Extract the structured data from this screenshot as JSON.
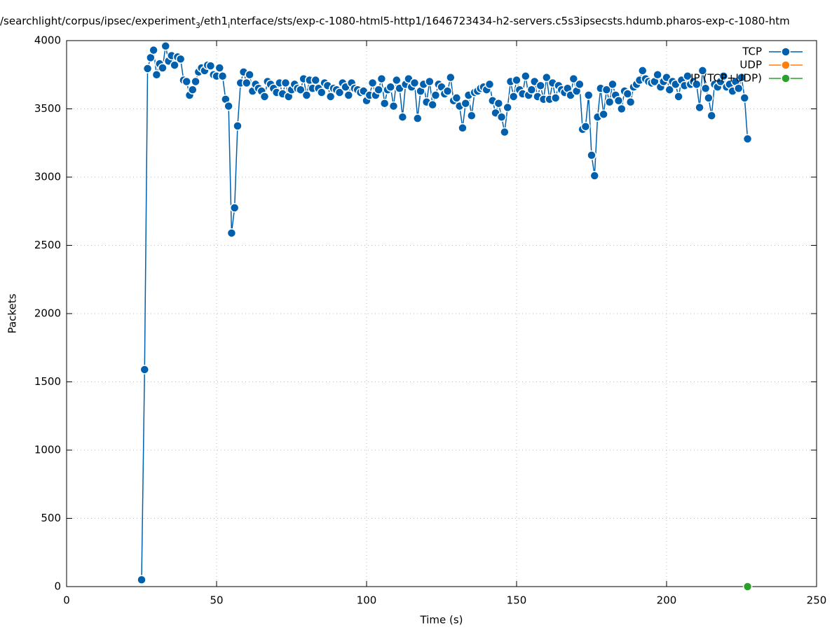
{
  "chart_data": {
    "type": "line",
    "title": [
      "/searchlight/corpus/ipsec/experiment",
      "3",
      "/eth1",
      "i",
      "nterface/sts/exp-c-1080-html5-http1/1646723434-h2-servers.c5s3ipsecsts.hdumb.pharos-exp-c-1080-htm"
    ],
    "xlabel": "Time (s)",
    "ylabel": "Packets",
    "xlim": [
      0,
      250
    ],
    "xticks": [
      0,
      50,
      100,
      150,
      200,
      250
    ],
    "ylim": [
      0,
      4000
    ],
    "yticks": [
      0,
      500,
      1000,
      1500,
      2000,
      2500,
      3000,
      3500,
      4000
    ],
    "grid": true,
    "legend": "top-right",
    "series": [
      {
        "name": "TCP",
        "color": "#0060ad",
        "x": [
          25,
          26,
          27,
          28,
          29,
          30,
          31,
          32,
          33,
          34,
          35,
          36,
          37,
          38,
          39,
          40,
          41,
          42,
          43,
          44,
          45,
          46,
          47,
          48,
          49,
          50,
          51,
          52,
          53,
          54,
          55,
          56,
          57,
          58,
          59,
          60,
          61,
          62,
          63,
          64,
          65,
          66,
          67,
          68,
          69,
          70,
          71,
          72,
          73,
          74,
          75,
          76,
          77,
          78,
          79,
          80,
          81,
          82,
          83,
          84,
          85,
          86,
          87,
          88,
          89,
          90,
          91,
          92,
          93,
          94,
          95,
          96,
          97,
          98,
          99,
          100,
          101,
          102,
          103,
          104,
          105,
          106,
          107,
          108,
          109,
          110,
          111,
          112,
          113,
          114,
          115,
          116,
          117,
          118,
          119,
          120,
          121,
          122,
          123,
          124,
          125,
          126,
          127,
          128,
          129,
          130,
          131,
          132,
          133,
          134,
          135,
          136,
          137,
          138,
          139,
          140,
          141,
          142,
          143,
          144,
          145,
          146,
          147,
          148,
          149,
          150,
          151,
          152,
          153,
          154,
          155,
          156,
          157,
          158,
          159,
          160,
          161,
          162,
          163,
          164,
          165,
          166,
          167,
          168,
          169,
          170,
          171,
          172,
          173,
          174,
          175,
          176,
          177,
          178,
          179,
          180,
          181,
          182,
          183,
          184,
          185,
          186,
          187,
          188,
          189,
          190,
          191,
          192,
          193,
          194,
          195,
          196,
          197,
          198,
          199,
          200,
          201,
          202,
          203,
          204,
          205,
          206,
          207,
          208,
          209,
          210,
          211,
          212,
          213,
          214,
          215,
          216,
          217,
          218,
          219,
          220,
          221,
          222,
          223,
          224,
          225,
          226,
          227
        ],
        "values": [
          50,
          1590,
          3795,
          3875,
          3930,
          3750,
          3830,
          3800,
          3960,
          3850,
          3890,
          3820,
          3880,
          3865,
          3710,
          3700,
          3600,
          3640,
          3700,
          3770,
          3800,
          3780,
          3820,
          3815,
          3750,
          3740,
          3800,
          3740,
          3570,
          3520,
          2590,
          2775,
          3375,
          3690,
          3770,
          3690,
          3750,
          3630,
          3680,
          3650,
          3630,
          3590,
          3700,
          3680,
          3650,
          3620,
          3690,
          3610,
          3690,
          3590,
          3640,
          3680,
          3650,
          3640,
          3720,
          3600,
          3710,
          3650,
          3710,
          3650,
          3620,
          3690,
          3670,
          3590,
          3650,
          3640,
          3620,
          3690,
          3660,
          3600,
          3690,
          3650,
          3640,
          3620,
          3630,
          3560,
          3600,
          3690,
          3600,
          3640,
          3720,
          3540,
          3640,
          3660,
          3520,
          3710,
          3650,
          3440,
          3680,
          3720,
          3660,
          3690,
          3430,
          3630,
          3680,
          3550,
          3700,
          3530,
          3600,
          3680,
          3660,
          3610,
          3630,
          3730,
          3560,
          3580,
          3520,
          3360,
          3540,
          3600,
          3450,
          3620,
          3630,
          3650,
          3660,
          3640,
          3680,
          3560,
          3470,
          3540,
          3440,
          3330,
          3510,
          3700,
          3590,
          3710,
          3640,
          3610,
          3740,
          3600,
          3640,
          3700,
          3590,
          3670,
          3570,
          3730,
          3570,
          3690,
          3580,
          3670,
          3640,
          3620,
          3650,
          3600,
          3720,
          3630,
          3680,
          3350,
          3370,
          3600,
          3160,
          3010,
          3440,
          3650,
          3460,
          3640,
          3550,
          3680,
          3600,
          3560,
          3500,
          3630,
          3610,
          3550,
          3660,
          3680,
          3710,
          3780,
          3720,
          3700,
          3690,
          3700,
          3750,
          3660,
          3700,
          3730,
          3640,
          3700,
          3680,
          3590,
          3710,
          3670,
          3740,
          3680,
          3700,
          3680,
          3510,
          3780,
          3650,
          3580,
          3450,
          3680,
          3660,
          3700,
          3740,
          3660,
          3680,
          3630,
          3700,
          3650,
          3730,
          3580,
          3280
        ]
      },
      {
        "name": "UDP",
        "color": "#ff7f0e",
        "x": [],
        "values": []
      },
      {
        "name": "IP (TCP+UDP)",
        "color": "#2ca02c",
        "x": [
          227
        ],
        "values": [
          0
        ]
      }
    ]
  }
}
